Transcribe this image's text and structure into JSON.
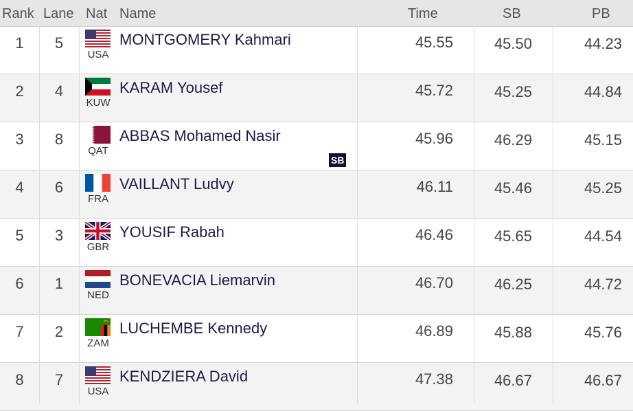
{
  "header": {
    "columns": [
      "Rank",
      "Lane",
      "Nat",
      "Name",
      "Time",
      "SB",
      "PB"
    ]
  },
  "rows": [
    {
      "rank": "1",
      "lane": "5",
      "nat": "USA",
      "name": "MONTGOMERY Kahmari",
      "time": "45.55",
      "sb": "45.50",
      "pb": "44.23"
    },
    {
      "rank": "2",
      "lane": "4",
      "nat": "KUW",
      "name": "KARAM Yousef",
      "time": "45.72",
      "sb": "45.25",
      "pb": "44.84"
    },
    {
      "rank": "3",
      "lane": "8",
      "nat": "QAT",
      "name": "ABBAS Mohamed Nasir",
      "badge": "SB",
      "time": "45.96",
      "sb": "46.29",
      "pb": "45.15"
    },
    {
      "rank": "4",
      "lane": "6",
      "nat": "FRA",
      "name": "VAILLANT Ludvy",
      "time": "46.11",
      "sb": "45.46",
      "pb": "45.25"
    },
    {
      "rank": "5",
      "lane": "3",
      "nat": "GBR",
      "name": "YOUSIF Rabah",
      "time": "46.46",
      "sb": "45.65",
      "pb": "44.54"
    },
    {
      "rank": "6",
      "lane": "1",
      "nat": "NED",
      "name": "BONEVACIA Liemarvin",
      "time": "46.70",
      "sb": "46.25",
      "pb": "44.72"
    },
    {
      "rank": "7",
      "lane": "2",
      "nat": "ZAM",
      "name": "LUCHEMBE Kennedy",
      "time": "46.89",
      "sb": "45.88",
      "pb": "45.76"
    },
    {
      "rank": "8",
      "lane": "7",
      "nat": "USA",
      "name": "KENDZIERA David",
      "time": "47.38",
      "sb": "46.67",
      "pb": "46.67"
    }
  ]
}
